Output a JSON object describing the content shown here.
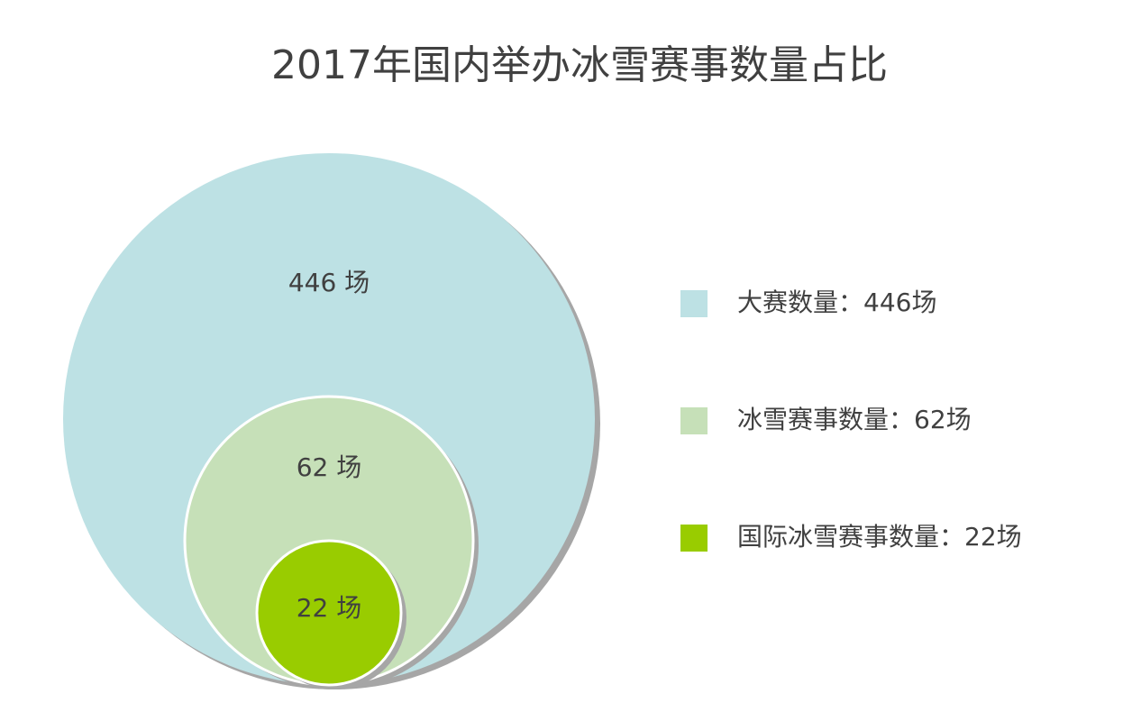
{
  "chart_data": {
    "type": "nested-circles",
    "title": "2017年国内举办冰雪赛事数量占比",
    "series": [
      {
        "name": "大赛数量",
        "color": "#bde1e4",
        "values": [
          446
        ],
        "value_labels": [
          "446 场"
        ],
        "legend_label": "大赛数量：446场"
      },
      {
        "name": "冰雪赛事数量",
        "color": "#c6e0b8",
        "values": [
          62
        ],
        "value_labels": [
          "62 场"
        ],
        "legend_label": "冰雪赛事数量：62场"
      },
      {
        "name": "国际冰雪赛事数量",
        "color": "#99cc00",
        "values": [
          22
        ],
        "value_labels": [
          "22 场"
        ],
        "legend_label": "国际冰雪赛事数量：22场"
      }
    ],
    "legend": "right"
  }
}
